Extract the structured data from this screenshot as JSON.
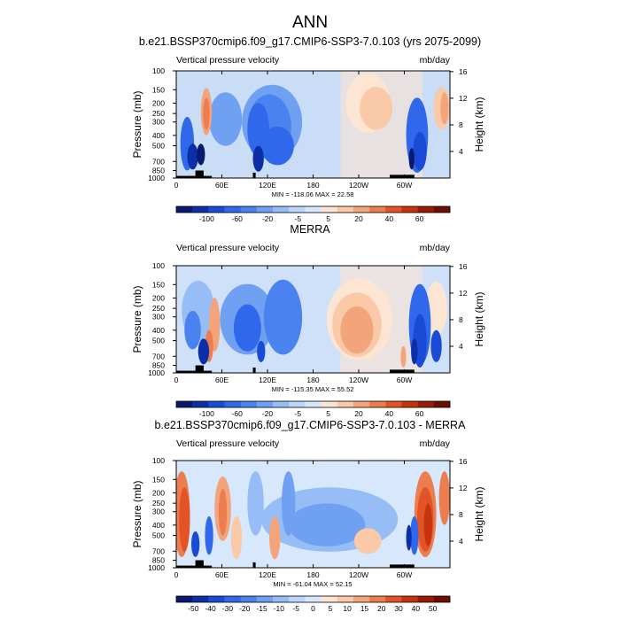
{
  "page_title": "ANN",
  "chart_data": [
    {
      "type": "heatmap",
      "title": "b.e21.BSSP370cmip6.f09_g17.CMIP6-SSP3-7.0.103 (yrs 2075-2099)",
      "left_label": "Vertical pressure velocity",
      "right_label": "mb/day",
      "ylabel": "Pressure (mb)",
      "ylabel_right": "Height (km)",
      "x_ticks": [
        "0",
        "60E",
        "120E",
        "180",
        "120W",
        "60W"
      ],
      "y_ticks": [
        "100",
        "150",
        "200",
        "250",
        "300",
        "400",
        "500",
        "700",
        "850",
        "1000"
      ],
      "y_ticks_right": [
        "16",
        "12",
        "8",
        "4"
      ],
      "stats": "MIN = -118.06  MAX = 22.58",
      "min": -118.06,
      "max": 22.58,
      "colorbar_levels": [
        "-100",
        "-60",
        "-20",
        "-5",
        "5",
        "20",
        "40",
        "60"
      ],
      "colors": [
        "#081a6e",
        "#0c2fa8",
        "#1a4bd6",
        "#2f68ea",
        "#4a83ef",
        "#6fa0f2",
        "#96bdf6",
        "#bcd6f9",
        "#d8e8fc",
        "#fde5d3",
        "#f9c9a8",
        "#f3a47a",
        "#ec7d4e",
        "#e25426",
        "#c4340e",
        "#9b1c04",
        "#6e0e00"
      ]
    },
    {
      "type": "heatmap",
      "title": "MERRA",
      "left_label": "Vertical pressure velocity",
      "right_label": "mb/day",
      "ylabel": "Pressure (mb)",
      "ylabel_right": "Height (km)",
      "x_ticks": [
        "0",
        "60E",
        "120E",
        "180",
        "120W",
        "60W"
      ],
      "y_ticks": [
        "100",
        "150",
        "200",
        "250",
        "300",
        "400",
        "500",
        "700",
        "850",
        "1000"
      ],
      "y_ticks_right": [
        "16",
        "12",
        "8",
        "4"
      ],
      "stats": "MIN = -115.35  MAX = 55.52",
      "min": -115.35,
      "max": 55.52,
      "colorbar_levels": [
        "-100",
        "-60",
        "-20",
        "-5",
        "5",
        "20",
        "40",
        "60"
      ],
      "colors": [
        "#081a6e",
        "#0c2fa8",
        "#1a4bd6",
        "#2f68ea",
        "#4a83ef",
        "#6fa0f2",
        "#96bdf6",
        "#bcd6f9",
        "#d8e8fc",
        "#fde5d3",
        "#f9c9a8",
        "#f3a47a",
        "#ec7d4e",
        "#e25426",
        "#c4340e",
        "#9b1c04",
        "#6e0e00"
      ]
    },
    {
      "type": "heatmap",
      "title": "b.e21.BSSP370cmip6.f09_g17.CMIP6-SSP3-7.0.103 - MERRA",
      "left_label": "Vertical pressure velocity",
      "right_label": "mb/day",
      "ylabel": "Pressure (mb)",
      "ylabel_right": "Height (km)",
      "x_ticks": [
        "0",
        "60E",
        "120E",
        "180",
        "120W",
        "60W"
      ],
      "y_ticks": [
        "100",
        "150",
        "200",
        "250",
        "300",
        "400",
        "500",
        "700",
        "850",
        "1000"
      ],
      "y_ticks_right": [
        "16",
        "12",
        "8",
        "4"
      ],
      "stats": "MIN = -61.04  MAX = 52.15",
      "min": -61.04,
      "max": 52.15,
      "colorbar_levels": [
        "-50",
        "-40",
        "-30",
        "-20",
        "-15",
        "-10",
        "-5",
        "0",
        "5",
        "10",
        "15",
        "20",
        "30",
        "40",
        "50"
      ],
      "colors": [
        "#081a6e",
        "#0c2fa8",
        "#1a4bd6",
        "#2f68ea",
        "#4a83ef",
        "#6fa0f2",
        "#96bdf6",
        "#bcd6f9",
        "#d8e8fc",
        "#fde5d3",
        "#f9c9a8",
        "#f3a47a",
        "#ec7d4e",
        "#e25426",
        "#c4340e",
        "#9b1c04",
        "#6e0e00"
      ]
    }
  ]
}
